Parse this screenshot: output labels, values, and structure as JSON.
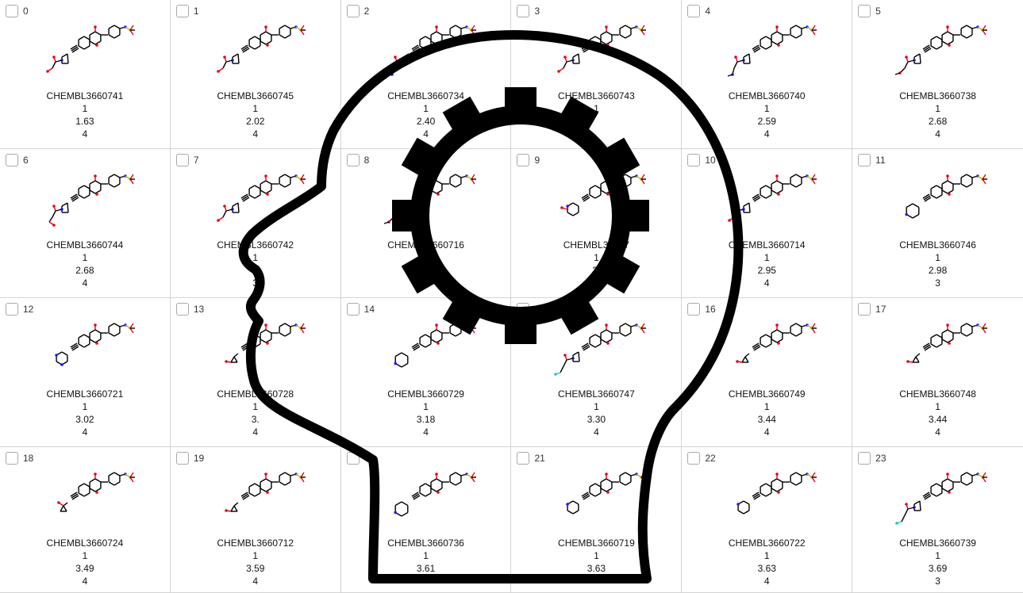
{
  "cells": [
    {
      "index": "0",
      "chembl_id": "CHEMBL3660741",
      "v1": "1",
      "v2": "1.63",
      "v3": "4",
      "tail": "ho"
    },
    {
      "index": "1",
      "chembl_id": "CHEMBL3660745",
      "v1": "1",
      "v2": "2.02",
      "v3": "4",
      "tail": "oh2"
    },
    {
      "index": "2",
      "chembl_id": "CHEMBL3660734",
      "v1": "1",
      "v2": "2.40",
      "v3": "4",
      "tail": "amine"
    },
    {
      "index": "3",
      "chembl_id": "CHEMBL3660743",
      "v1": "1",
      "v2": "",
      "v3": "",
      "tail": "oh2"
    },
    {
      "index": "4",
      "chembl_id": "CHEMBL3660740",
      "v1": "1",
      "v2": "2.59",
      "v3": "4",
      "tail": "amine"
    },
    {
      "index": "5",
      "chembl_id": "CHEMBL3660738",
      "v1": "1",
      "v2": "2.68",
      "v3": "4",
      "tail": "ether"
    },
    {
      "index": "6",
      "chembl_id": "CHEMBL3660744",
      "v1": "1",
      "v2": "2.68",
      "v3": "4",
      "tail": "oxetane"
    },
    {
      "index": "7",
      "chembl_id": "CHEMBL3660742",
      "v1": "1",
      "v2": "",
      "v3": "3",
      "tail": "oh2"
    },
    {
      "index": "8",
      "chembl_id": "CHEMBL3660716",
      "v1": "",
      "v2": "2.8",
      "v3": "4",
      "tail": "ether"
    },
    {
      "index": "9",
      "chembl_id": "CHEMBL36607",
      "v1": "1",
      "v2": "2.",
      "v3": "",
      "tail": "pyridone"
    },
    {
      "index": "10",
      "chembl_id": "CHEMBL3660714",
      "v1": "1",
      "v2": "2.95",
      "v3": "4",
      "tail": "ho"
    },
    {
      "index": "11",
      "chembl_id": "CHEMBL3660746",
      "v1": "1",
      "v2": "2.98",
      "v3": "3",
      "tail": "piperidine"
    },
    {
      "index": "12",
      "chembl_id": "CHEMBL3660721",
      "v1": "1",
      "v2": "3.02",
      "v3": "4",
      "tail": "pyrimidine"
    },
    {
      "index": "13",
      "chembl_id": "CHEMBL3660728",
      "v1": "1",
      "v2": "3.",
      "v3": "4",
      "tail": "cyclopropyl"
    },
    {
      "index": "14",
      "chembl_id": "CHEMBL3660729",
      "v1": "1",
      "v2": "3.18",
      "v3": "4",
      "tail": "piperidine"
    },
    {
      "index": "15",
      "chembl_id": "CHEMBL3660747",
      "v1": "1",
      "v2": "3.30",
      "v3": "4",
      "tail": "fluoro"
    },
    {
      "index": "16",
      "chembl_id": "CHEMBL3660749",
      "v1": "1",
      "v2": "3.44",
      "v3": "4",
      "tail": "cyclopropyl"
    },
    {
      "index": "17",
      "chembl_id": "CHEMBL3660748",
      "v1": "1",
      "v2": "3.44",
      "v3": "4",
      "tail": "cyclobutyl"
    },
    {
      "index": "18",
      "chembl_id": "CHEMBL3660724",
      "v1": "1",
      "v2": "3.49",
      "v3": "4",
      "tail": "cyclopentanol"
    },
    {
      "index": "19",
      "chembl_id": "CHEMBL3660712",
      "v1": "1",
      "v2": "3.59",
      "v3": "4",
      "tail": "cyclopropyl"
    },
    {
      "index": "",
      "chembl_id": "CHEMBL3660736",
      "v1": "1",
      "v2": "3.61",
      "v3": "",
      "tail": "piperidine"
    },
    {
      "index": "21",
      "chembl_id": "CHEMBL3660719",
      "v1": "1",
      "v2": "3.63",
      "v3": "",
      "tail": "pyridine"
    },
    {
      "index": "22",
      "chembl_id": "CHEMBL3660722",
      "v1": "1",
      "v2": "3.63",
      "v3": "4",
      "tail": "pyridine"
    },
    {
      "index": "23",
      "chembl_id": "CHEMBL3660739",
      "v1": "1",
      "v2": "3.69",
      "v3": "3",
      "tail": "fluoro"
    }
  ],
  "overlay_icon": "head-gear-icon",
  "colors": {
    "grid_line": "#d4d4d4",
    "bond": "#000000",
    "oxygen": "#e8001c",
    "nitrogen": "#1c1cf0",
    "sulfur": "#c8b400",
    "fluorine": "#22c4c4",
    "overlay": "#000000"
  }
}
